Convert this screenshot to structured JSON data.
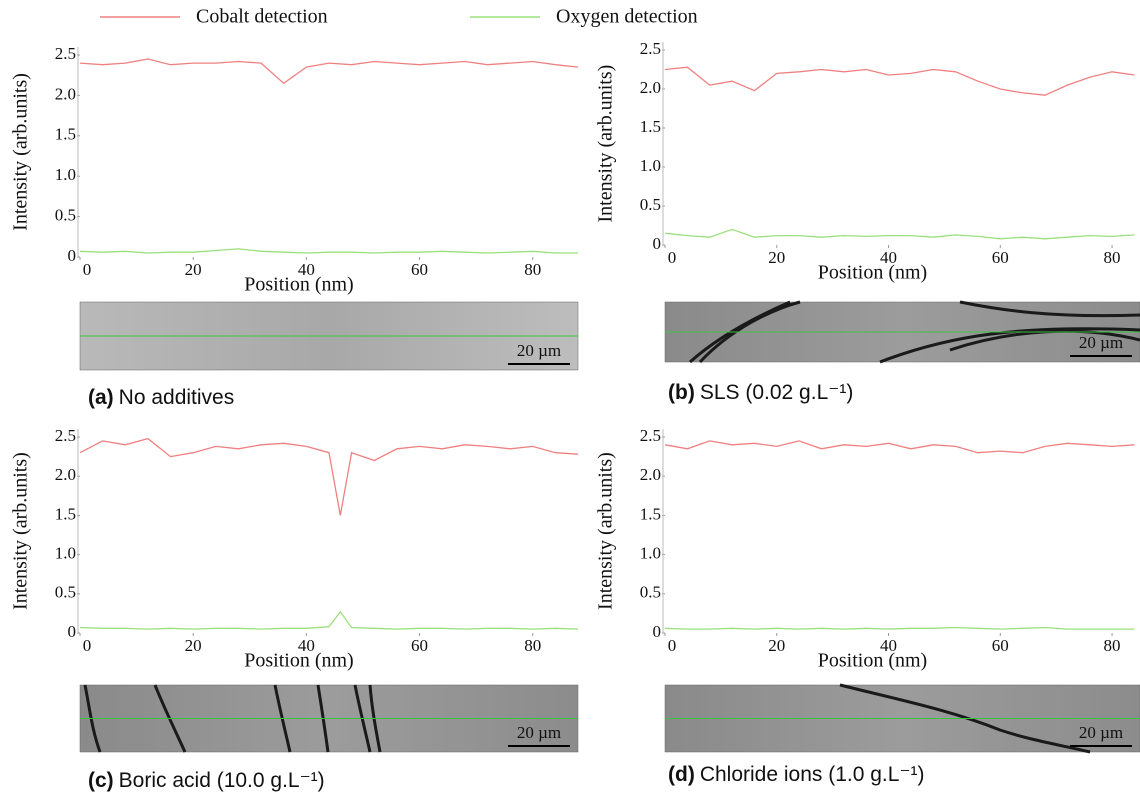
{
  "chart_data": [
    {
      "type": "line",
      "label": "(a)",
      "caption": "No additives",
      "scale_bar": "20 µm",
      "x_label": "Position (nm)",
      "y_label": "Intensity (arb.units)",
      "x": [
        0,
        4,
        8,
        12,
        16,
        20,
        24,
        28,
        32,
        36,
        40,
        44,
        48,
        52,
        56,
        60,
        64,
        68,
        72,
        76,
        80,
        84,
        88
      ],
      "series": [
        {
          "name": "Cobalt detection",
          "color": "#f08080",
          "values": [
            2.4,
            2.38,
            2.4,
            2.45,
            2.38,
            2.4,
            2.4,
            2.42,
            2.4,
            2.15,
            2.35,
            2.4,
            2.38,
            2.42,
            2.4,
            2.38,
            2.4,
            2.42,
            2.38,
            2.4,
            2.42,
            2.38,
            2.35
          ]
        },
        {
          "name": "Oxygen detection",
          "color": "#9be07a",
          "values": [
            0.07,
            0.06,
            0.07,
            0.05,
            0.06,
            0.06,
            0.08,
            0.1,
            0.07,
            0.06,
            0.05,
            0.06,
            0.06,
            0.05,
            0.06,
            0.06,
            0.07,
            0.06,
            0.05,
            0.06,
            0.07,
            0.05,
            0.05
          ]
        }
      ],
      "xlim": [
        0,
        88
      ],
      "ylim": [
        0,
        2.6
      ],
      "xticks": [
        0,
        20,
        40,
        60,
        80
      ],
      "yticks": [
        0,
        0.5,
        {
          "value": 1,
          "label": "1.0"
        },
        1.5,
        {
          "value": 2,
          "label": "2.0"
        },
        2.5
      ]
    },
    {
      "type": "line",
      "label": "(b)",
      "caption": "SLS (0.02 g.L⁻¹)",
      "scale_bar": "20 µm",
      "x_label": "Position (nm)",
      "y_label": "Intensity (arb.units)",
      "x": [
        0,
        4,
        8,
        12,
        16,
        20,
        24,
        28,
        32,
        36,
        40,
        44,
        48,
        52,
        56,
        60,
        64,
        68,
        72,
        76,
        80,
        84
      ],
      "series": [
        {
          "color": "#f08080",
          "values": [
            2.25,
            2.28,
            2.05,
            2.1,
            1.98,
            2.2,
            2.22,
            2.25,
            2.22,
            2.25,
            2.18,
            2.2,
            2.25,
            2.22,
            2.1,
            2.0,
            1.95,
            1.92,
            2.05,
            2.15,
            2.22,
            2.18
          ]
        },
        {
          "color": "#9be07a",
          "values": [
            0.15,
            0.12,
            0.1,
            0.2,
            0.1,
            0.12,
            0.12,
            0.1,
            0.12,
            0.11,
            0.12,
            0.12,
            0.1,
            0.13,
            0.11,
            0.08,
            0.1,
            0.08,
            0.1,
            0.12,
            0.11,
            0.13
          ]
        }
      ],
      "xlim": [
        0,
        85
      ],
      "ylim": [
        0,
        2.6
      ],
      "xticks": [
        0,
        20,
        40,
        60,
        80
      ],
      "yticks": [
        0,
        0.5,
        {
          "value": 1,
          "label": "1.0"
        },
        1.5,
        {
          "value": 2,
          "label": "2.0"
        },
        2.5
      ]
    },
    {
      "type": "line",
      "label": "(c)",
      "caption": "Boric acid (10.0 g.L⁻¹)",
      "scale_bar": "20 µm",
      "x_label": "Position (nm)",
      "y_label": "Intensity (arb.units)",
      "x": [
        0,
        4,
        8,
        12,
        16,
        20,
        24,
        28,
        32,
        36,
        40,
        44,
        46,
        48,
        52,
        56,
        60,
        64,
        68,
        72,
        76,
        80,
        84,
        88
      ],
      "series": [
        {
          "color": "#f08080",
          "values": [
            2.3,
            2.45,
            2.4,
            2.48,
            2.25,
            2.3,
            2.38,
            2.35,
            2.4,
            2.42,
            2.38,
            2.3,
            1.5,
            2.3,
            2.2,
            2.35,
            2.38,
            2.35,
            2.4,
            2.38,
            2.35,
            2.38,
            2.3,
            2.28
          ]
        },
        {
          "color": "#9be07a",
          "values": [
            0.07,
            0.06,
            0.06,
            0.05,
            0.06,
            0.05,
            0.06,
            0.06,
            0.05,
            0.06,
            0.06,
            0.08,
            0.27,
            0.07,
            0.06,
            0.05,
            0.06,
            0.06,
            0.05,
            0.06,
            0.06,
            0.05,
            0.06,
            0.05
          ]
        }
      ],
      "xlim": [
        0,
        88
      ],
      "ylim": [
        0,
        2.6
      ],
      "xticks": [
        0,
        20,
        40,
        60,
        80
      ],
      "yticks": [
        0,
        0.5,
        {
          "value": 1,
          "label": "1.0"
        },
        1.5,
        {
          "value": 2,
          "label": "2.0"
        },
        2.5
      ]
    },
    {
      "type": "line",
      "label": "(d)",
      "caption": "Chloride ions (1.0 g.L⁻¹)",
      "scale_bar": "20 µm",
      "x_label": "Position (nm)",
      "y_label": "Intensity (arb.units)",
      "x": [
        0,
        4,
        8,
        12,
        16,
        20,
        24,
        28,
        32,
        36,
        40,
        44,
        48,
        52,
        56,
        60,
        64,
        68,
        72,
        76,
        80,
        84
      ],
      "series": [
        {
          "color": "#f08080",
          "values": [
            2.4,
            2.35,
            2.45,
            2.4,
            2.42,
            2.38,
            2.45,
            2.35,
            2.4,
            2.38,
            2.42,
            2.35,
            2.4,
            2.38,
            2.3,
            2.32,
            2.3,
            2.38,
            2.42,
            2.4,
            2.38,
            2.4
          ]
        },
        {
          "color": "#9be07a",
          "values": [
            0.06,
            0.05,
            0.05,
            0.06,
            0.05,
            0.06,
            0.05,
            0.06,
            0.05,
            0.06,
            0.05,
            0.06,
            0.06,
            0.07,
            0.06,
            0.05,
            0.06,
            0.07,
            0.05,
            0.05,
            0.05,
            0.05
          ]
        }
      ],
      "xlim": [
        0,
        85
      ],
      "ylim": [
        0,
        2.6
      ],
      "xticks": [
        0,
        20,
        40,
        60,
        80
      ],
      "yticks": [
        0,
        0.5,
        {
          "value": 1,
          "label": "1.0"
        },
        1.5,
        {
          "value": 2,
          "label": "2.0"
        },
        2.5
      ]
    }
  ]
}
